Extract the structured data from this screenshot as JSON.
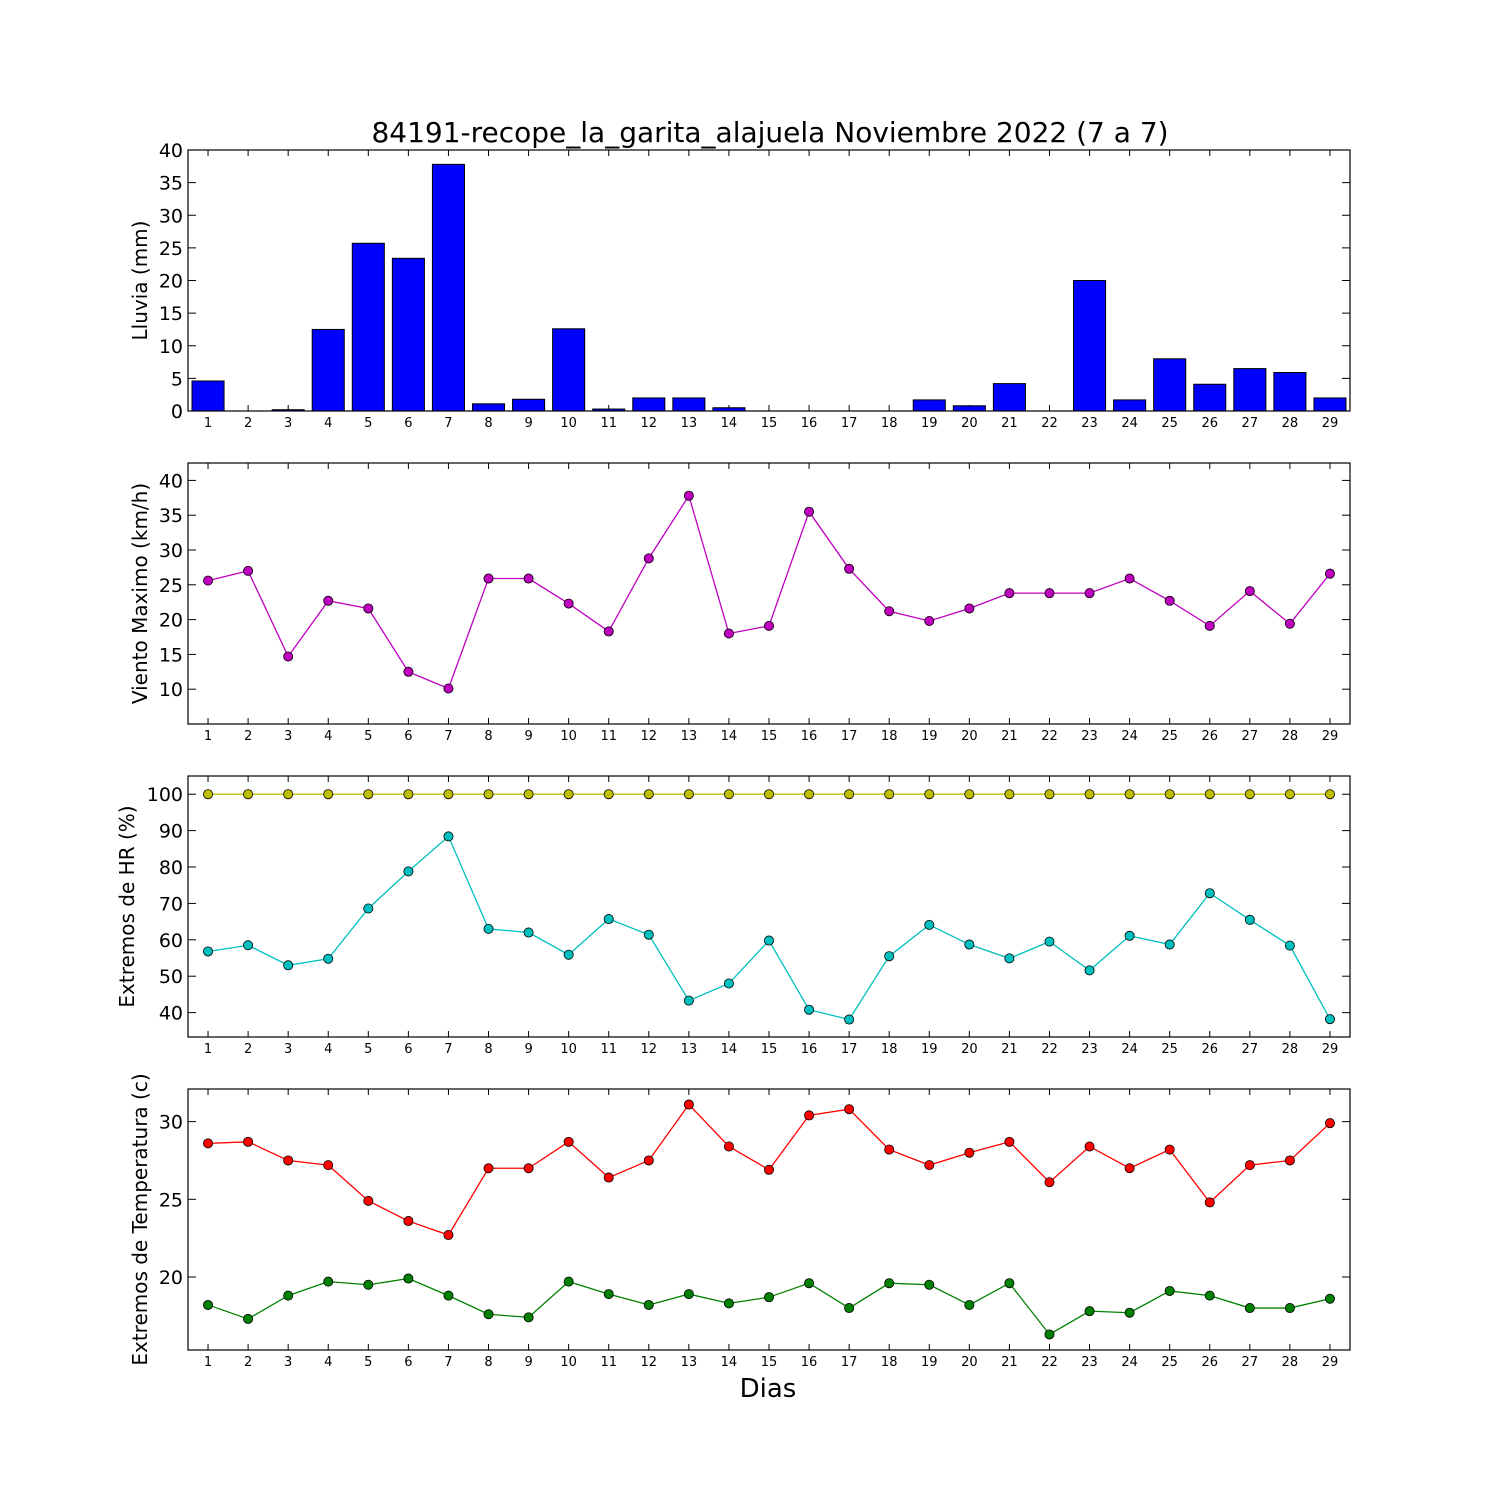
{
  "figure": {
    "title": "84191-recope_la_garita_alajuela Noviembre 2022  (7 a 7)",
    "xlabel": "Dias"
  },
  "chart_data": [
    {
      "type": "bar",
      "ylabel": "Lluvia (mm)",
      "ylim": [
        0,
        40
      ],
      "yticks": [
        0,
        5,
        10,
        15,
        20,
        25,
        30,
        35,
        40
      ],
      "categories": [
        "1",
        "2",
        "3",
        "4",
        "5",
        "6",
        "7",
        "8",
        "9",
        "10",
        "11",
        "12",
        "13",
        "14",
        "15",
        "16",
        "17",
        "18",
        "19",
        "20",
        "21",
        "22",
        "23",
        "24",
        "25",
        "26",
        "27",
        "28",
        "29"
      ],
      "series": [
        {
          "color": "#0000ff",
          "values": [
            4.6,
            0,
            0.2,
            12.5,
            25.7,
            23.4,
            37.8,
            1.1,
            1.8,
            12.6,
            0.3,
            2.0,
            2.0,
            0.5,
            0,
            0,
            0,
            0,
            1.7,
            0.8,
            4.2,
            0,
            20.0,
            1.7,
            8.0,
            4.1,
            6.5,
            5.9,
            2.0
          ]
        }
      ],
      "grid": false
    },
    {
      "type": "line",
      "ylabel": "Viento Maximo (km/h)",
      "ylim": [
        5,
        42.5
      ],
      "yticks": [
        10,
        15,
        20,
        25,
        30,
        35,
        40
      ],
      "categories": [
        "1",
        "2",
        "3",
        "4",
        "5",
        "6",
        "7",
        "8",
        "9",
        "10",
        "11",
        "12",
        "13",
        "14",
        "15",
        "16",
        "17",
        "18",
        "19",
        "20",
        "21",
        "22",
        "23",
        "24",
        "25",
        "26",
        "27",
        "28",
        "29"
      ],
      "series": [
        {
          "color": "#bf00bf",
          "values": [
            25.6,
            27.0,
            14.7,
            22.7,
            21.6,
            12.5,
            10.1,
            25.9,
            25.9,
            22.3,
            18.3,
            28.8,
            37.8,
            18.0,
            19.1,
            35.5,
            27.3,
            21.2,
            19.8,
            21.6,
            23.8,
            23.8,
            23.8,
            25.9,
            22.7,
            19.1,
            24.1,
            19.4,
            26.6
          ]
        }
      ],
      "grid": false
    },
    {
      "type": "line",
      "ylabel": "Extremos de HR (%)",
      "ylim": [
        33.3,
        105
      ],
      "yticks": [
        40,
        50,
        60,
        70,
        80,
        90,
        100
      ],
      "categories": [
        "1",
        "2",
        "3",
        "4",
        "5",
        "6",
        "7",
        "8",
        "9",
        "10",
        "11",
        "12",
        "13",
        "14",
        "15",
        "16",
        "17",
        "18",
        "19",
        "20",
        "21",
        "22",
        "23",
        "24",
        "25",
        "26",
        "27",
        "28",
        "29"
      ],
      "series": [
        {
          "color": "#bfbf00",
          "values": [
            100,
            100,
            100,
            100,
            100,
            100,
            100,
            100,
            100,
            100,
            100,
            100,
            100,
            100,
            100,
            100,
            100,
            100,
            100,
            100,
            100,
            100,
            100,
            100,
            100,
            100,
            100,
            100,
            100
          ]
        },
        {
          "color": "#00bfbf",
          "values": [
            56.8,
            58.5,
            53.0,
            54.8,
            68.6,
            78.8,
            88.4,
            63.0,
            62.0,
            55.9,
            65.7,
            61.4,
            43.3,
            48.0,
            59.8,
            40.8,
            38.1,
            55.5,
            64.1,
            58.7,
            54.9,
            59.5,
            51.6,
            61.1,
            58.7,
            72.8,
            65.5,
            58.4,
            38.2
          ]
        }
      ],
      "grid": false
    },
    {
      "type": "line",
      "ylabel": "Extremos de Temperatura (c)",
      "ylim": [
        15.3,
        32.1
      ],
      "yticks": [
        20,
        25,
        30
      ],
      "categories": [
        "1",
        "2",
        "3",
        "4",
        "5",
        "6",
        "7",
        "8",
        "9",
        "10",
        "11",
        "12",
        "13",
        "14",
        "15",
        "16",
        "17",
        "18",
        "19",
        "20",
        "21",
        "22",
        "23",
        "24",
        "25",
        "26",
        "27",
        "28",
        "29"
      ],
      "series": [
        {
          "color": "#ff0000",
          "values": [
            28.6,
            28.7,
            27.5,
            27.2,
            24.9,
            23.6,
            22.7,
            27.0,
            27.0,
            28.7,
            26.4,
            27.5,
            31.1,
            28.4,
            26.9,
            30.4,
            30.8,
            28.2,
            27.2,
            28.0,
            28.7,
            26.1,
            28.4,
            27.0,
            28.2,
            24.8,
            27.2,
            27.5,
            29.9
          ]
        },
        {
          "color": "#008000",
          "values": [
            18.2,
            17.3,
            18.8,
            19.7,
            19.5,
            19.9,
            18.8,
            17.6,
            17.4,
            19.7,
            18.9,
            18.2,
            18.9,
            18.3,
            18.7,
            19.6,
            18.0,
            19.6,
            19.5,
            18.2,
            19.6,
            16.3,
            17.8,
            17.7,
            19.1,
            18.8,
            18.0,
            18.0,
            18.6
          ]
        }
      ],
      "grid": false
    }
  ]
}
